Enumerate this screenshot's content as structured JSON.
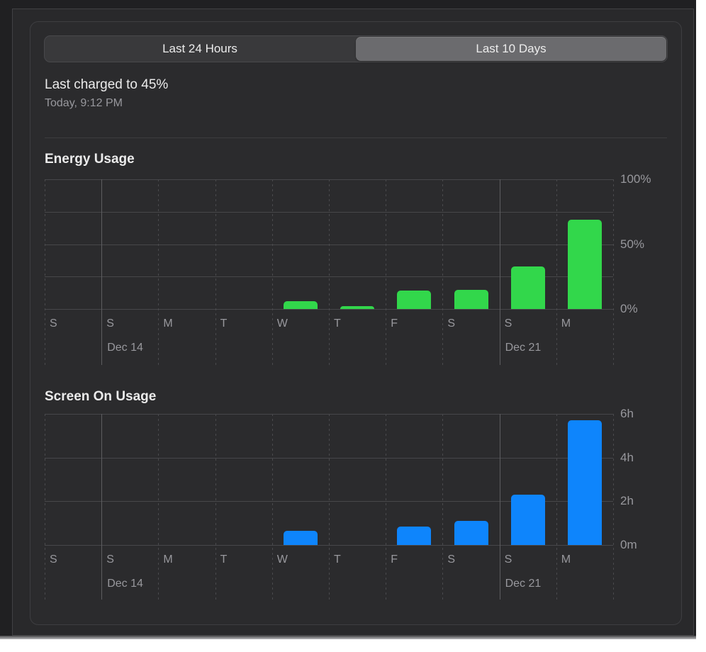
{
  "segmented": {
    "options": [
      "Last 24 Hours",
      "Last 10 Days"
    ],
    "selected": "Last 10 Days"
  },
  "last_charged": {
    "title": "Last charged to 45%",
    "subtitle": "Today, 9:12 PM"
  },
  "chart_data": [
    {
      "type": "bar",
      "title": "Energy Usage",
      "categories": [
        "S",
        "S",
        "M",
        "T",
        "W",
        "T",
        "F",
        "S",
        "S",
        "M"
      ],
      "values": [
        0,
        0,
        0,
        0,
        6,
        2,
        14,
        15,
        33,
        69
      ],
      "unit": "%",
      "ylim": [
        0,
        100
      ],
      "grid_values": [
        0,
        25,
        50,
        75,
        100
      ],
      "yticks": [
        {
          "value": 100,
          "label": "100%"
        },
        {
          "value": 50,
          "label": "50%"
        },
        {
          "value": 0,
          "label": "0%"
        }
      ],
      "week_markers": [
        {
          "index": 1,
          "label": "Dec 14"
        },
        {
          "index": 8,
          "label": "Dec 21"
        }
      ],
      "bar_color": "#32d74b",
      "legend_position": "none",
      "grid": "on"
    },
    {
      "type": "bar",
      "title": "Screen On Usage",
      "categories": [
        "S",
        "S",
        "M",
        "T",
        "W",
        "T",
        "F",
        "S",
        "S",
        "M"
      ],
      "values": [
        0,
        0,
        0,
        0,
        0.65,
        0,
        0.85,
        1.1,
        2.3,
        5.7
      ],
      "unit": "hours",
      "ylim": [
        0,
        6
      ],
      "grid_values": [
        0,
        2,
        4,
        6
      ],
      "yticks": [
        {
          "value": 6,
          "label": "6h"
        },
        {
          "value": 4,
          "label": "4h"
        },
        {
          "value": 2,
          "label": "2h"
        },
        {
          "value": 0,
          "label": "0m"
        }
      ],
      "week_markers": [
        {
          "index": 1,
          "label": "Dec 14"
        },
        {
          "index": 8,
          "label": "Dec 21"
        }
      ],
      "bar_color": "#0e85fc",
      "legend_position": "none",
      "grid": "on"
    }
  ],
  "colors": {
    "energy_bar": "#32d74b",
    "screen_bar": "#0e85fc",
    "selected_segment": "#6b6b6e",
    "panel_background": "#29292b",
    "grid_line": "#48484b",
    "text_primary": "#ebebeb",
    "text_secondary": "#98989d"
  }
}
